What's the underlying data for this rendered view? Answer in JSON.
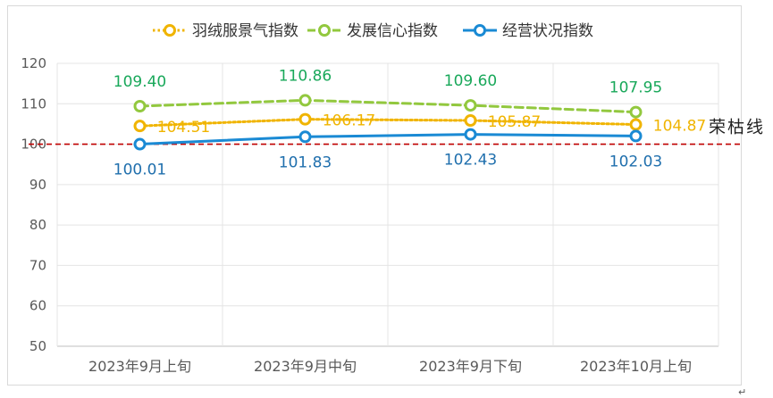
{
  "chart_data": {
    "type": "line",
    "categories": [
      "2023年9月上旬",
      "2023年9月中旬",
      "2023年9月下旬",
      "2023年10月上旬"
    ],
    "ylim": [
      50,
      120
    ],
    "yticks": [
      50,
      60,
      70,
      80,
      90,
      100,
      110,
      120
    ],
    "ytick_labels": [
      "50",
      "60",
      "70",
      "80",
      "90",
      "100",
      "110",
      "120"
    ],
    "grid": true,
    "legend_position": "top",
    "series": [
      {
        "name": "羽绒服景气指数",
        "values": [
          104.51,
          106.17,
          105.87,
          104.87
        ],
        "labels": [
          "104.51",
          "106.17",
          "105.87",
          "104.87"
        ],
        "color": "#f0b400",
        "label_color": "#f0b400",
        "line_style": "dotted"
      },
      {
        "name": "发展信心指数",
        "values": [
          109.4,
          110.86,
          109.6,
          107.95
        ],
        "labels": [
          "109.40",
          "110.86",
          "109.60",
          "107.95"
        ],
        "color": "#92c83e",
        "label_color": "#19a85a",
        "line_style": "dashed"
      },
      {
        "name": "经营状况指数",
        "values": [
          100.01,
          101.83,
          102.43,
          102.03
        ],
        "labels": [
          "100.01",
          "101.83",
          "102.43",
          "102.03"
        ],
        "color": "#1a8ad4",
        "label_color": "#1f6fad",
        "line_style": "solid"
      }
    ],
    "reference_line": {
      "value": 100,
      "label": "荣枯线",
      "color": "#c00000",
      "line_style": "dashed"
    }
  },
  "paragraph_mark": "↵"
}
